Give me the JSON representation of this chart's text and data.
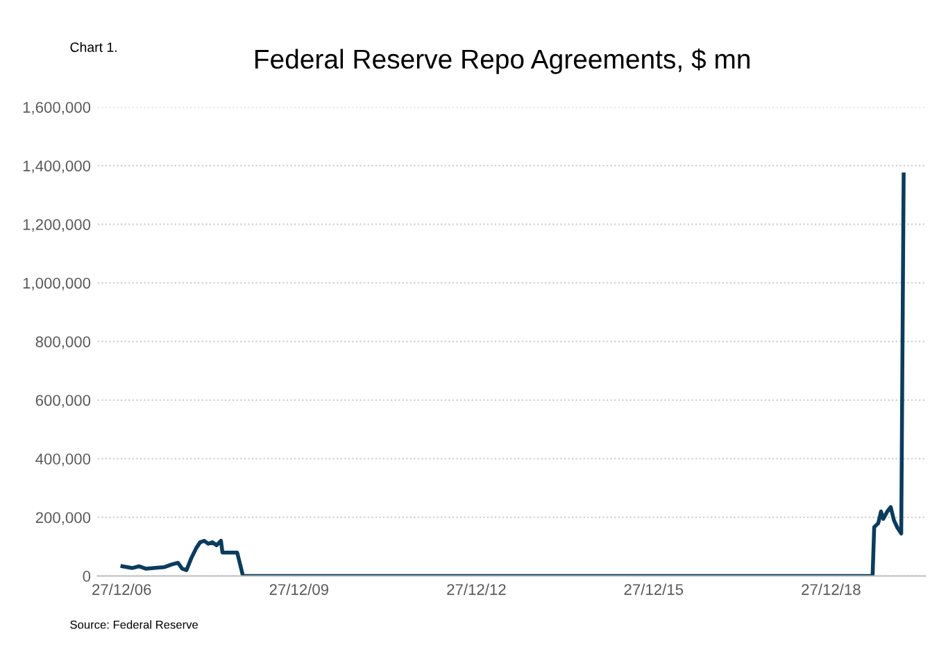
{
  "chart_data": {
    "type": "line",
    "title": "Federal Reserve Repo Agreements, $ mn",
    "annotations": [
      "Chart 1.",
      "Source: Federal Reserve"
    ],
    "x": [
      "2007-01-01",
      "2007-03-01",
      "2007-04-15",
      "2007-05-25",
      "2007-07-25",
      "2007-09-15",
      "2007-11-05",
      "2007-12-10",
      "2008-01-05",
      "2008-02-01",
      "2008-03-01",
      "2008-04-01",
      "2008-04-25",
      "2008-05-20",
      "2008-06-15",
      "2008-07-10",
      "2008-08-05",
      "2008-09-01",
      "2008-09-10",
      "2008-12-10",
      "2009-01-15",
      "2019-09-10",
      "2019-09-20",
      "2019-10-15",
      "2019-11-01",
      "2019-11-15",
      "2019-12-10",
      "2019-12-31",
      "2020-01-20",
      "2020-02-10",
      "2020-03-05",
      "2020-03-20"
    ],
    "series": [
      {
        "color": "#0b3c5d",
        "values": [
          33000,
          27000,
          33000,
          25000,
          28000,
          30000,
          40000,
          45000,
          25000,
          20000,
          60000,
          95000,
          115000,
          120000,
          110000,
          115000,
          105000,
          120000,
          80000,
          80000,
          0,
          0,
          167000,
          180000,
          220000,
          195000,
          220000,
          235000,
          190000,
          165000,
          145000,
          1370000
        ]
      }
    ],
    "xlim": [
      "2006-08-01",
      "2020-08-01"
    ],
    "xticks": [
      {
        "value": "2006-12-27",
        "label": "27/12/06"
      },
      {
        "value": "2009-12-27",
        "label": "27/12/09"
      },
      {
        "value": "2012-12-27",
        "label": "27/12/12"
      },
      {
        "value": "2015-12-27",
        "label": "27/12/15"
      },
      {
        "value": "2018-12-27",
        "label": "27/12/18"
      }
    ],
    "ylim": [
      0,
      1600000
    ],
    "yticks": [
      {
        "value": 0,
        "label": "0"
      },
      {
        "value": 200000,
        "label": "200,000"
      },
      {
        "value": 400000,
        "label": "400,000"
      },
      {
        "value": 600000,
        "label": "600,000"
      },
      {
        "value": 800000,
        "label": "800,000"
      },
      {
        "value": 1000000,
        "label": "1,000,000"
      },
      {
        "value": 1200000,
        "label": "1,200,000"
      },
      {
        "value": 1400000,
        "label": "1,400,000"
      },
      {
        "value": 1600000,
        "label": "1,600,000"
      }
    ],
    "grid": "y",
    "marker": "none",
    "line_style": "solid"
  }
}
